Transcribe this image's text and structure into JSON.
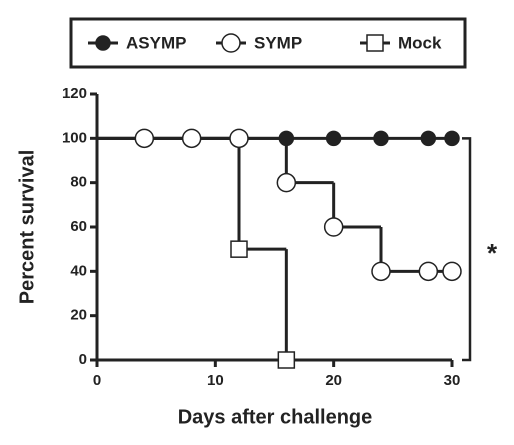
{
  "chart_data": {
    "type": "survival",
    "xlabel": "Days after  challenge",
    "ylabel": "Percent survival",
    "xlim": [
      0,
      30
    ],
    "ylim": [
      0,
      120
    ],
    "xticks": [
      0,
      10,
      20,
      30
    ],
    "yticks": [
      0,
      20,
      40,
      60,
      80,
      100,
      120
    ],
    "annotation": "*",
    "series": [
      {
        "name": "ASYMP",
        "color": "#222",
        "marker": "filled-circle",
        "x": [
          0,
          16,
          20,
          24,
          28,
          30
        ],
        "values": [
          100,
          100,
          100,
          100,
          100,
          100
        ]
      },
      {
        "name": "SYMP",
        "color": "#222",
        "marker": "open-circle",
        "x": [
          0,
          4,
          8,
          12,
          16,
          20,
          24,
          28,
          30
        ],
        "values": [
          100,
          100,
          100,
          100,
          80,
          60,
          40,
          40,
          40
        ]
      },
      {
        "name": "Mock",
        "color": "#222",
        "marker": "open-square",
        "x": [
          0,
          12,
          16
        ],
        "values": [
          100,
          50,
          0
        ]
      }
    ]
  }
}
